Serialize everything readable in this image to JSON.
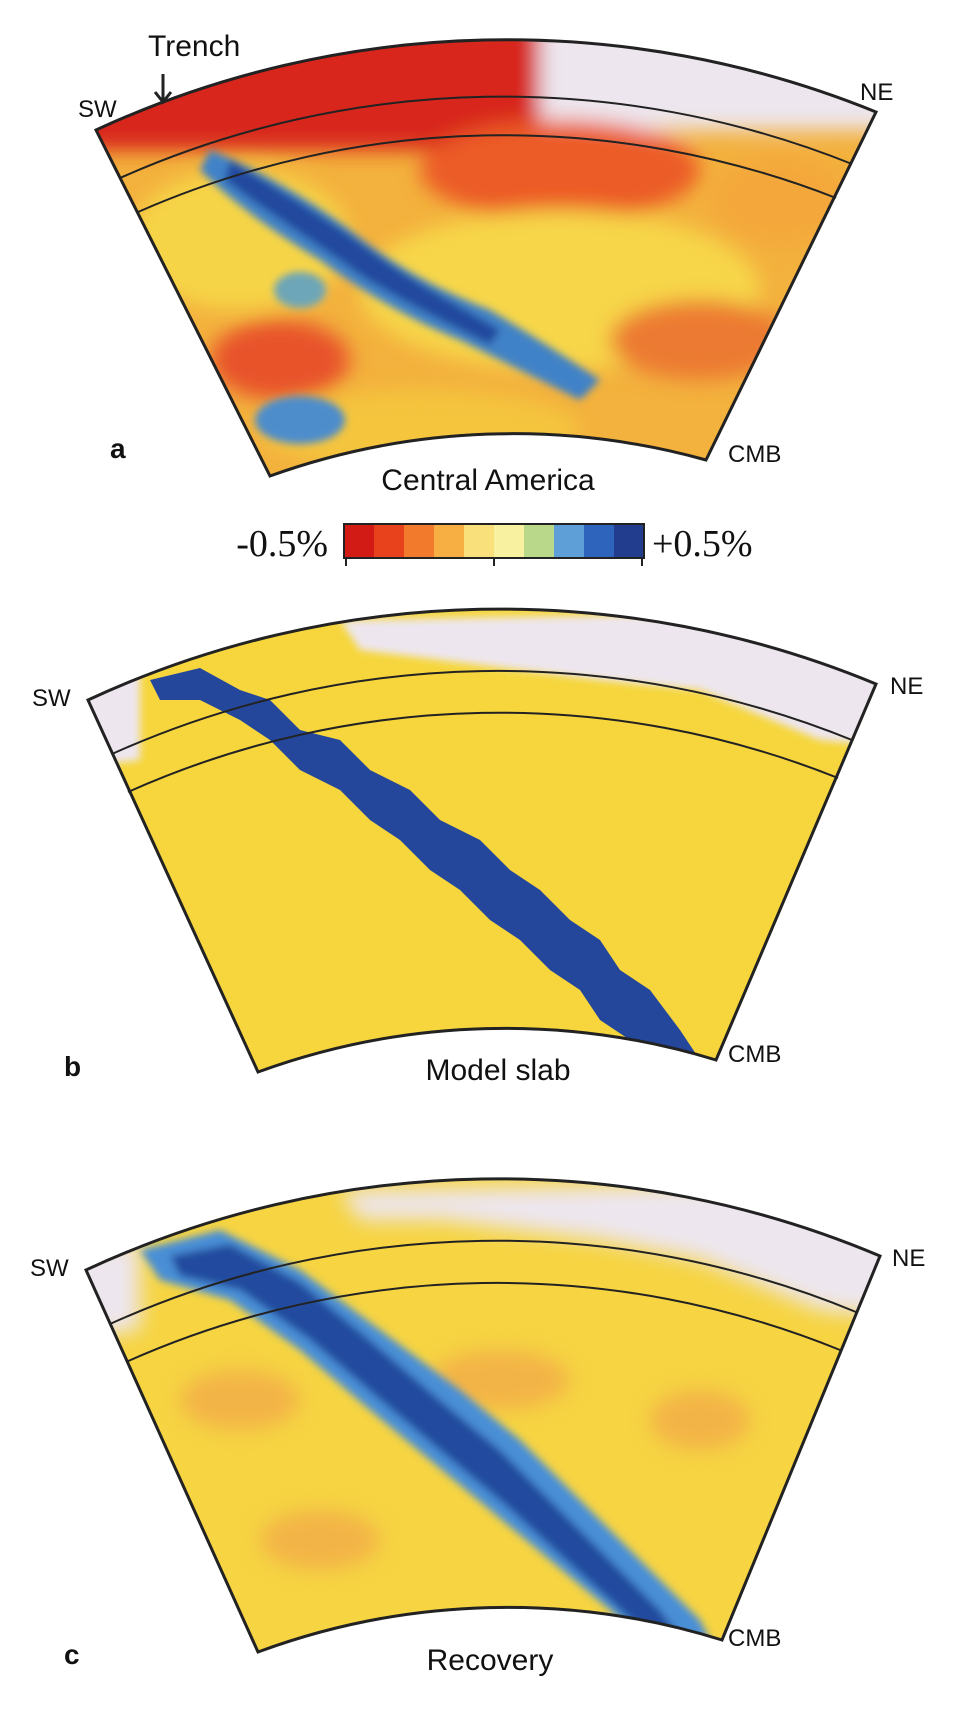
{
  "colors": {
    "strong_negative": "#d62a1e",
    "negative": "#ee6a2c",
    "mild_negative": "#f3a33a",
    "neutral": "#f6d43d",
    "mild_positive": "#8ebf9a",
    "positive": "#3a78c6",
    "strong_positive": "#23449a",
    "no_data": "#ede6ee",
    "outline": "#222222"
  },
  "colorbar": {
    "min_label": "-0.5%",
    "max_label": "+0.5%",
    "stops": [
      "#d11b14",
      "#e8421d",
      "#f27a2c",
      "#f7ae42",
      "#f9e07a",
      "#f8f2a0",
      "#b9d88a",
      "#5f9fd8",
      "#2f64bd",
      "#223c8e"
    ]
  },
  "panels": [
    {
      "letter": "a",
      "title": "Central America",
      "left_label": "SW",
      "right_label": "NE",
      "bottom_label": "CMB",
      "annotation": "Trench"
    },
    {
      "letter": "b",
      "title": "Model slab",
      "left_label": "SW",
      "right_label": "NE",
      "bottom_label": "CMB"
    },
    {
      "letter": "c",
      "title": "Recovery",
      "left_label": "SW",
      "right_label": "NE",
      "bottom_label": "CMB"
    }
  ]
}
